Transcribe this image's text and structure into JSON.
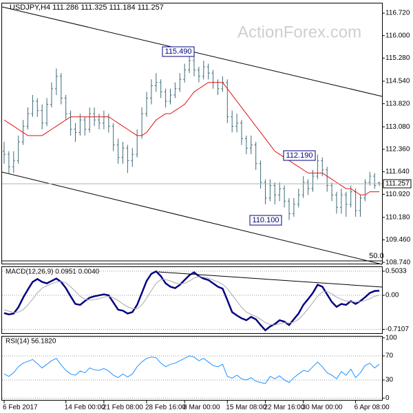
{
  "chart_data": [
    {
      "type": "ohlc",
      "title": "USDJPY,H4 111.286 111.325 111.184 111.257",
      "watermark": "ActionForex.com",
      "categories": [
        "6 Feb 2017",
        null,
        null,
        null,
        null,
        null,
        null,
        null,
        null,
        null,
        null,
        null,
        null,
        "14 Feb 00:00",
        null,
        null,
        null,
        null,
        null,
        null,
        null,
        "21 Feb 08:00",
        null,
        null,
        null,
        null,
        null,
        null,
        null,
        null,
        "28 Feb 16:00",
        null,
        null,
        null,
        null,
        null,
        null,
        null,
        "8 Mar 00:00",
        null,
        null,
        null,
        null,
        null,
        null,
        null,
        null,
        "15 Mar 08:00",
        null,
        null,
        null,
        null,
        null,
        null,
        null,
        "22 Mar 16:00",
        null,
        null,
        null,
        null,
        null,
        null,
        null,
        "30 Mar 00:00",
        null,
        null,
        null,
        null,
        null,
        null,
        null,
        null,
        null,
        null,
        "6 Apr 08:00",
        null,
        null,
        null,
        null,
        null
      ],
      "open": [
        112.3,
        112.2,
        111.8,
        112.0,
        112.6,
        113.1,
        113.5,
        113.9,
        113.6,
        113.2,
        113.8,
        114.3,
        114.7,
        114.0,
        113.5,
        113.0,
        112.9,
        113.3,
        113.0,
        113.5,
        113.3,
        113.2,
        113.4,
        113.1,
        112.5,
        112.1,
        112.4,
        112.0,
        112.2,
        112.8,
        113.5,
        114.0,
        114.4,
        114.5,
        114.2,
        113.9,
        114.1,
        114.3,
        114.6,
        114.9,
        115.2,
        114.9,
        114.7,
        115.0,
        114.8,
        114.5,
        114.3,
        114.5,
        113.4,
        113.1,
        113.2,
        112.7,
        112.4,
        112.5,
        111.9,
        111.3,
        110.8,
        111.2,
        110.9,
        111.1,
        110.7,
        110.3,
        110.6,
        110.9,
        111.3,
        111.1,
        111.5,
        112.0,
        111.7,
        111.2,
        110.9,
        110.5,
        110.9,
        110.6,
        111.0,
        110.4,
        110.8,
        111.3,
        111.5,
        111.286
      ],
      "high": [
        112.6,
        112.3,
        112.3,
        112.8,
        113.3,
        113.7,
        114.1,
        114.0,
        113.8,
        114.0,
        114.5,
        114.95,
        114.8,
        114.1,
        113.6,
        113.2,
        113.5,
        113.4,
        113.7,
        113.7,
        113.5,
        113.6,
        113.5,
        113.2,
        112.7,
        112.6,
        112.5,
        112.4,
        113.0,
        113.7,
        114.2,
        114.6,
        114.8,
        114.6,
        114.3,
        114.3,
        114.5,
        114.8,
        115.1,
        115.35,
        115.49,
        115.0,
        115.2,
        115.1,
        114.9,
        114.6,
        114.7,
        114.6,
        113.6,
        113.5,
        113.3,
        112.8,
        112.8,
        112.6,
        112.0,
        111.4,
        111.4,
        111.3,
        111.3,
        111.2,
        110.8,
        110.8,
        111.1,
        111.5,
        111.4,
        111.7,
        112.19,
        112.1,
        111.8,
        111.3,
        111.0,
        111.1,
        111.0,
        111.2,
        111.1,
        110.9,
        111.4,
        111.64,
        111.6,
        111.325
      ],
      "low": [
        111.9,
        111.6,
        111.6,
        111.9,
        112.5,
        113.0,
        113.4,
        113.4,
        113.0,
        113.1,
        113.7,
        114.1,
        113.8,
        113.3,
        112.8,
        112.6,
        112.8,
        112.8,
        112.9,
        113.1,
        113.0,
        113.0,
        112.9,
        112.3,
        111.9,
        111.9,
        111.6,
        111.8,
        112.1,
        112.7,
        113.4,
        113.8,
        114.2,
        114.0,
        113.7,
        113.8,
        114.0,
        114.2,
        114.5,
        114.8,
        114.7,
        114.5,
        114.6,
        114.6,
        114.3,
        114.1,
        114.2,
        113.2,
        112.9,
        112.9,
        112.5,
        112.2,
        112.2,
        111.7,
        111.1,
        110.6,
        110.7,
        110.6,
        110.7,
        110.5,
        110.1,
        110.2,
        110.5,
        110.8,
        110.9,
        111.0,
        111.4,
        111.5,
        111.0,
        110.7,
        110.3,
        110.3,
        110.2,
        110.5,
        110.2,
        110.2,
        110.7,
        111.2,
        111.1,
        111.184
      ],
      "close": [
        112.2,
        111.8,
        112.0,
        112.6,
        113.1,
        113.5,
        113.9,
        113.6,
        113.2,
        113.8,
        114.3,
        114.7,
        114.0,
        113.5,
        113.0,
        112.9,
        113.3,
        113.0,
        113.5,
        113.3,
        113.2,
        113.4,
        113.1,
        112.5,
        112.1,
        112.4,
        112.0,
        112.2,
        112.8,
        113.5,
        114.0,
        114.4,
        114.5,
        114.2,
        113.9,
        114.1,
        114.3,
        114.6,
        114.9,
        115.2,
        114.9,
        114.7,
        115.0,
        114.8,
        114.5,
        114.3,
        114.5,
        113.4,
        113.1,
        113.2,
        112.7,
        112.4,
        112.5,
        111.9,
        111.3,
        110.8,
        111.2,
        110.9,
        111.1,
        110.7,
        110.3,
        110.6,
        110.9,
        111.3,
        111.1,
        111.5,
        112.0,
        111.7,
        111.2,
        110.9,
        110.5,
        110.9,
        110.6,
        111.0,
        110.4,
        110.8,
        111.3,
        111.5,
        111.2,
        111.257
      ],
      "color": "#3d6a78",
      "lines": [
        {
          "color": "#e01010",
          "values": [
            113.3,
            113.2,
            113.1,
            113.0,
            112.9,
            112.8,
            112.8,
            112.8,
            112.8,
            112.9,
            113.0,
            113.1,
            113.2,
            113.3,
            113.4,
            113.4,
            113.4,
            113.4,
            113.4,
            113.4,
            113.4,
            113.4,
            113.4,
            113.3,
            113.2,
            113.1,
            113.0,
            112.9,
            112.8,
            112.8,
            112.9,
            113.1,
            113.3,
            113.4,
            113.5,
            113.5,
            113.6,
            113.7,
            113.8,
            114.0,
            114.2,
            114.3,
            114.4,
            114.5,
            114.5,
            114.5,
            114.5,
            114.3,
            114.1,
            113.9,
            113.7,
            113.5,
            113.3,
            113.1,
            112.9,
            112.7,
            112.5,
            112.3,
            112.2,
            112.1,
            112.0,
            111.9,
            111.8,
            111.7,
            111.6,
            111.6,
            111.6,
            111.6,
            111.5,
            111.4,
            111.3,
            111.2,
            111.1,
            111.1,
            111.0,
            110.9,
            110.9,
            111.0,
            111.0,
            111.0
          ]
        }
      ],
      "last": {
        "value": 111.257,
        "label": "111.257"
      },
      "annotations": [
        "115.490",
        "112.190",
        "110.100",
        "50.0"
      ],
      "ylim": [
        108.7,
        117.03
      ],
      "yticks": [
        {
          "value": 116.72,
          "label": "116.720"
        },
        {
          "value": 116.0,
          "label": "116.000"
        },
        {
          "value": 115.28,
          "label": "115.280"
        },
        {
          "value": 114.54,
          "label": "114.540"
        },
        {
          "value": 113.82,
          "label": "113.820"
        },
        {
          "value": 113.08,
          "label": "113.080"
        },
        {
          "value": 112.36,
          "label": "112.360"
        },
        {
          "value": 111.64,
          "label": "111.640"
        },
        {
          "value": 110.92,
          "label": "110.920"
        },
        {
          "value": 110.18,
          "label": "110.180"
        },
        {
          "value": 109.46,
          "label": "109.460"
        },
        {
          "value": 108.74,
          "label": "108.740"
        }
      ]
    },
    {
      "type": "line",
      "title": "MACD(12,26,9) 0.0951 0.0040",
      "grid": true,
      "series": [
        {
          "color": "#000080",
          "values": [
            -0.37,
            -0.4,
            -0.38,
            -0.25,
            -0.05,
            0.12,
            0.28,
            0.34,
            0.28,
            0.25,
            0.3,
            0.35,
            0.28,
            0.15,
            -0.02,
            -0.18,
            -0.2,
            -0.12,
            -0.05,
            -0.02,
            0.0,
            0.02,
            0.0,
            -0.15,
            -0.3,
            -0.32,
            -0.38,
            -0.35,
            -0.2,
            0.05,
            0.3,
            0.45,
            0.5,
            0.4,
            0.25,
            0.18,
            0.15,
            0.22,
            0.32,
            0.42,
            0.48,
            0.4,
            0.35,
            0.32,
            0.25,
            0.18,
            0.14,
            -0.1,
            -0.35,
            -0.42,
            -0.48,
            -0.52,
            -0.45,
            -0.5,
            -0.62,
            -0.73,
            -0.65,
            -0.6,
            -0.52,
            -0.55,
            -0.62,
            -0.5,
            -0.38,
            -0.2,
            -0.08,
            0.05,
            0.22,
            0.18,
            0.02,
            -0.14,
            -0.24,
            -0.18,
            -0.2,
            -0.12,
            -0.18,
            -0.12,
            -0.04,
            0.05,
            0.09,
            0.0951
          ]
        },
        {
          "color": "#a8a8a8",
          "values": [
            -0.3,
            -0.33,
            -0.36,
            -0.35,
            -0.3,
            -0.2,
            -0.08,
            0.05,
            0.15,
            0.2,
            0.24,
            0.28,
            0.29,
            0.26,
            0.18,
            0.08,
            -0.02,
            -0.08,
            -0.1,
            -0.09,
            -0.07,
            -0.04,
            -0.02,
            -0.05,
            -0.11,
            -0.18,
            -0.24,
            -0.28,
            -0.28,
            -0.2,
            -0.06,
            0.1,
            0.25,
            0.33,
            0.33,
            0.3,
            0.26,
            0.24,
            0.25,
            0.3,
            0.36,
            0.39,
            0.38,
            0.36,
            0.32,
            0.28,
            0.23,
            0.14,
            0.01,
            -0.12,
            -0.25,
            -0.35,
            -0.4,
            -0.44,
            -0.5,
            -0.57,
            -0.61,
            -0.62,
            -0.59,
            -0.57,
            -0.58,
            -0.56,
            -0.5,
            -0.4,
            -0.28,
            -0.15,
            -0.02,
            0.07,
            0.08,
            0.03,
            -0.04,
            -0.08,
            -0.12,
            -0.13,
            -0.14,
            -0.13,
            -0.11,
            -0.07,
            -0.02,
            0.004
          ]
        }
      ],
      "ylim": [
        -0.79,
        0.59
      ],
      "yticks": [
        0.5033,
        {
          "value": 0,
          "label": "0.00"
        },
        -0.7107
      ]
    },
    {
      "type": "line",
      "title": "RSI(14) 56.1820",
      "grid": true,
      "series": [
        {
          "color": "#1e90ff",
          "values": [
            40,
            36,
            42,
            52,
            58,
            61,
            64,
            57,
            50,
            56,
            62,
            66,
            55,
            46,
            40,
            38,
            45,
            42,
            50,
            47,
            46,
            49,
            45,
            38,
            34,
            40,
            35,
            40,
            52,
            60,
            66,
            68,
            67,
            58,
            52,
            56,
            58,
            62,
            66,
            70,
            68,
            62,
            66,
            60,
            54,
            52,
            56,
            36,
            33,
            38,
            32,
            30,
            34,
            28,
            26,
            24,
            36,
            32,
            37,
            30,
            26,
            34,
            40,
            46,
            44,
            52,
            60,
            52,
            42,
            38,
            32,
            44,
            38,
            48,
            34,
            42,
            54,
            58,
            50,
            56.182
          ]
        }
      ],
      "ylim": [
        -3,
        102
      ],
      "yticks": [
        100,
        70,
        30,
        0
      ]
    }
  ]
}
